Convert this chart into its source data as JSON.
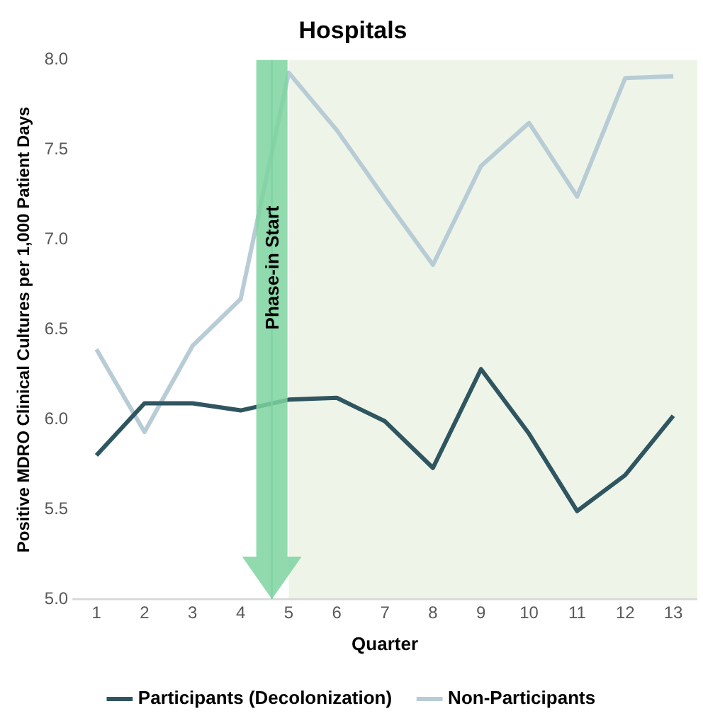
{
  "chart_data": {
    "type": "line",
    "title": "Hospitals",
    "xlabel": "Quarter",
    "ylabel": "Positive MDRO Clinical Cultures per 1,000 Patient Days",
    "x": [
      1,
      2,
      3,
      4,
      5,
      6,
      7,
      8,
      9,
      10,
      11,
      12,
      13
    ],
    "series": [
      {
        "name": "Participants (Decolonization)",
        "color": "#2f5560",
        "values": [
          5.8,
          6.09,
          6.09,
          6.05,
          6.11,
          6.12,
          5.99,
          5.73,
          6.28,
          5.92,
          5.49,
          5.69,
          6.02
        ]
      },
      {
        "name": "Non-Participants",
        "color": "#b8ccd6",
        "values": [
          6.39,
          5.93,
          6.41,
          6.67,
          7.93,
          7.61,
          7.23,
          6.86,
          7.41,
          7.65,
          7.24,
          7.9,
          7.91
        ]
      }
    ],
    "xlim": [
      0.5,
      13.5
    ],
    "xticks": [
      1,
      2,
      3,
      4,
      5,
      6,
      7,
      8,
      9,
      10,
      11,
      12,
      13
    ],
    "ylim": [
      5,
      8
    ],
    "yticks": [
      {
        "value": 5,
        "label": "5.0"
      },
      {
        "value": 5.5,
        "label": "5.5"
      },
      {
        "value": 6,
        "label": "6.0"
      },
      {
        "value": 6.5,
        "label": "6.5"
      },
      {
        "value": 7,
        "label": "7.0"
      },
      {
        "value": 7.5,
        "label": "7.5"
      },
      {
        "value": 8,
        "label": "8.0"
      }
    ],
    "ref_lines": [
      {
        "axis": "x",
        "value": 4.65,
        "label": "Phase-in Start",
        "color": "#7dd3a0"
      }
    ],
    "bands": [
      {
        "axis": "x",
        "from": 5,
        "to": 13.5,
        "color": "#e3efd9"
      }
    ],
    "grid": false,
    "legend": "bottom",
    "marker": "none",
    "line_style": "solid"
  }
}
